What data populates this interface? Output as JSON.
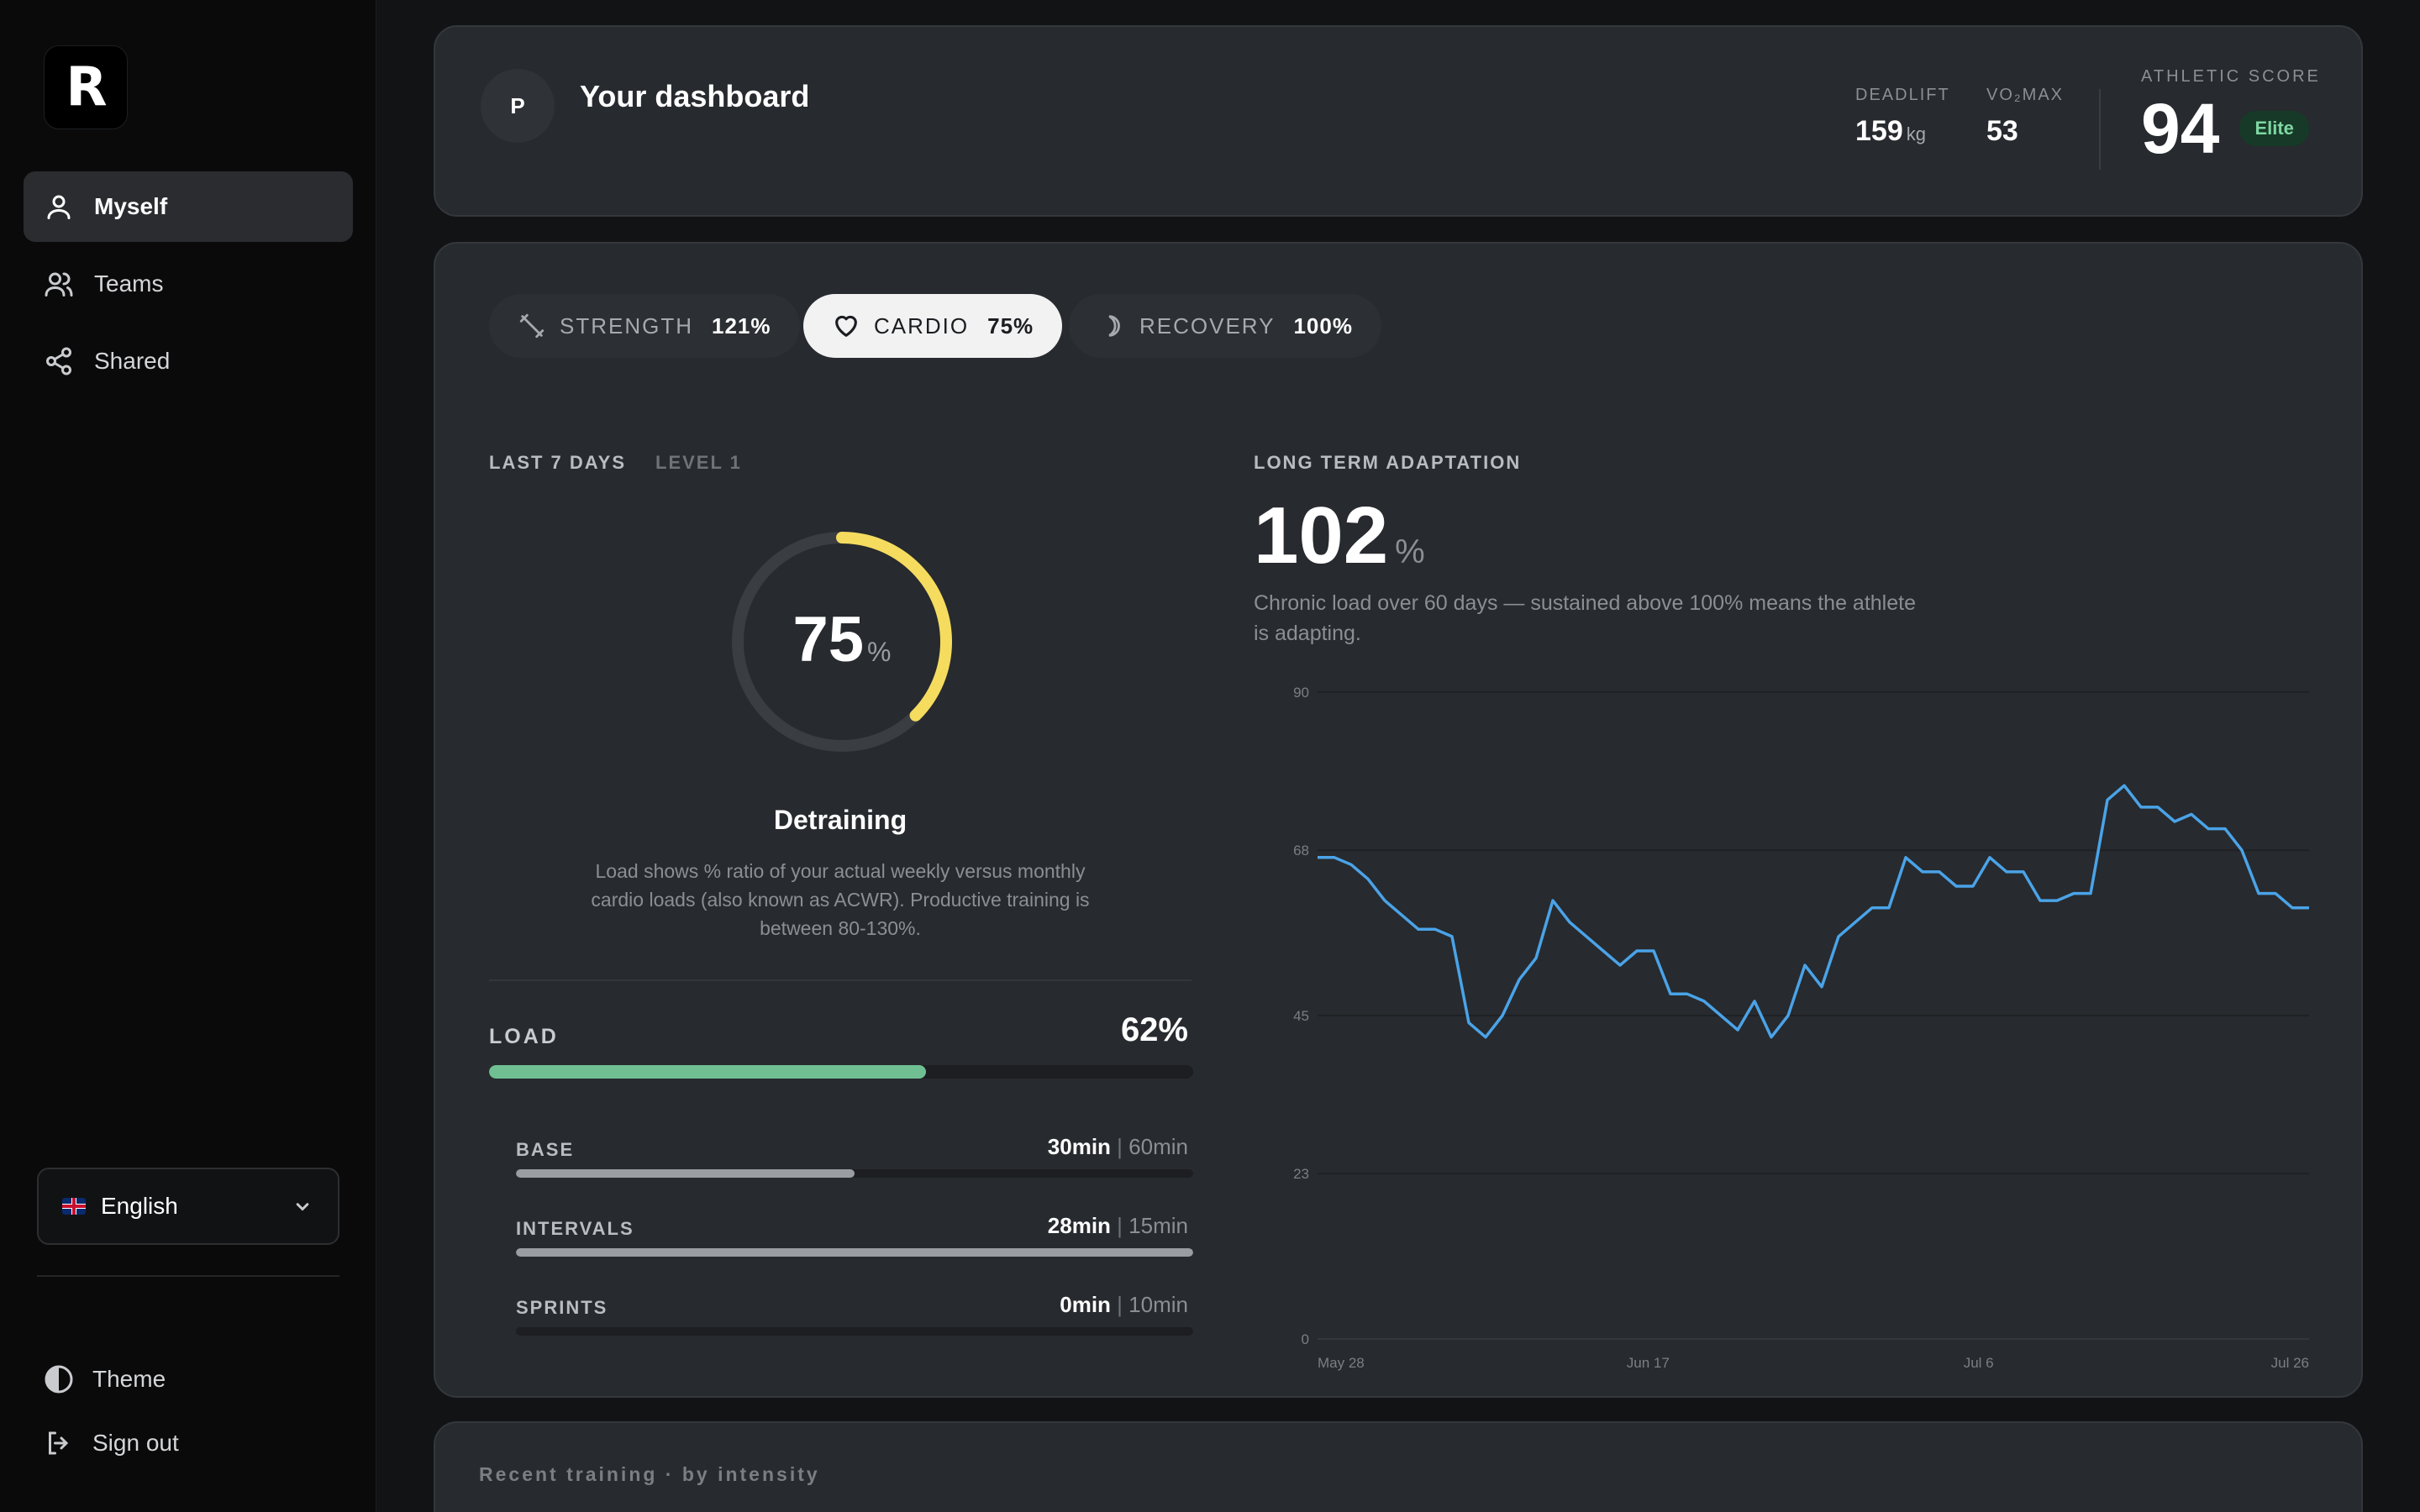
{
  "logo": {
    "letter": "R"
  },
  "sidebar": {
    "items": [
      {
        "label": "Myself",
        "icon": "user-icon",
        "active": true
      },
      {
        "label": "Teams",
        "icon": "users-icon",
        "active": false
      },
      {
        "label": "Shared",
        "icon": "share-icon",
        "active": false
      }
    ],
    "language": {
      "label": "English",
      "flag": "uk-flag-icon"
    },
    "bottom": [
      {
        "label": "Theme",
        "icon": "contrast-icon"
      },
      {
        "label": "Sign out",
        "icon": "sign-out-icon"
      }
    ]
  },
  "header": {
    "avatar_initial": "P",
    "title": "Your dashboard",
    "stats": [
      {
        "label": "DEADLIFT",
        "value": "159",
        "unit": "kg"
      },
      {
        "label": "VO₂MAX",
        "value": "53",
        "unit": ""
      }
    ],
    "athletic_score": {
      "label": "ATHLETIC SCORE",
      "value": "94",
      "badge": "Elite"
    }
  },
  "tabs": [
    {
      "label": "STRENGTH",
      "value": "121%",
      "icon": "dumbbell-icon",
      "active": false
    },
    {
      "label": "CARDIO",
      "value": "75%",
      "icon": "heart-icon",
      "active": true
    },
    {
      "label": "RECOVERY",
      "value": "100%",
      "icon": "moon-icon",
      "active": false
    }
  ],
  "weekly": {
    "period_label": "LAST 7 DAYS",
    "level_label": "LEVEL 1",
    "gauge_value": "75",
    "gauge_unit": "%",
    "gauge_fraction": 0.375,
    "status": "Detraining",
    "description": "Load shows % ratio of your actual weekly versus monthly cardio loads (also known as ACWR). Productive training is between 80-130%.",
    "load": {
      "label": "LOAD",
      "value": "62%",
      "fraction": 0.62
    },
    "breakdown": [
      {
        "label": "BASE",
        "actual": "30min",
        "target": "60min",
        "fraction": 0.5
      },
      {
        "label": "INTERVALS",
        "actual": "28min",
        "target": "15min",
        "fraction": 1.0
      },
      {
        "label": "SPRINTS",
        "actual": "0min",
        "target": "10min",
        "fraction": 0.0
      }
    ]
  },
  "adaptation": {
    "label": "LONG TERM ADAPTATION",
    "value": "102",
    "unit": "%",
    "description": "Chronic load over 60 days — sustained above 100% means the athlete is adapting."
  },
  "chart_data": {
    "type": "line",
    "title": "",
    "xlabel": "",
    "ylabel": "",
    "ylim": [
      0,
      90
    ],
    "yticks": [
      0,
      23,
      45,
      68,
      90
    ],
    "xtick_labels": [
      "May 28",
      "Jun 17",
      "Jul 6",
      "Jul 26"
    ],
    "grid": true,
    "line_color": "#4aa3e8",
    "values": [
      67,
      67,
      66,
      64,
      61,
      59,
      57,
      57,
      56,
      44,
      42,
      45,
      50,
      53,
      61,
      58,
      56,
      54,
      52,
      54,
      54,
      48,
      48,
      47,
      45,
      43,
      47,
      42,
      45,
      52,
      49,
      56,
      58,
      60,
      60,
      67,
      65,
      65,
      63,
      63,
      67,
      65,
      65,
      61,
      61,
      62,
      62,
      75,
      77,
      74,
      74,
      72,
      73,
      71,
      71,
      68,
      62,
      62,
      60,
      60
    ]
  },
  "recent": {
    "label": "Recent training · by intensity"
  }
}
